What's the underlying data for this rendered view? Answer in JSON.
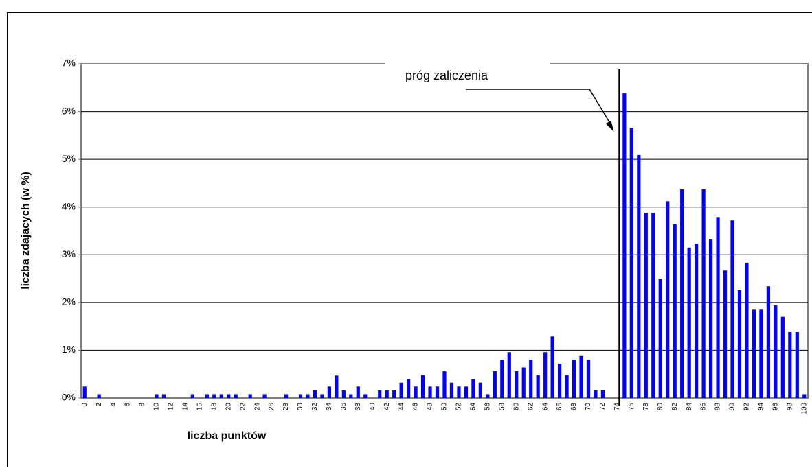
{
  "chart_data": {
    "type": "bar",
    "ylabel": "liczba zdajacych (w %)",
    "xlabel": "liczba punktów",
    "color": "#0000ff",
    "categories": [
      0,
      null,
      2,
      null,
      4,
      null,
      6,
      null,
      8,
      null,
      10,
      null,
      12,
      null,
      14,
      null,
      16,
      null,
      18,
      null,
      20,
      null,
      22,
      null,
      24,
      null,
      26,
      null,
      28,
      null,
      30,
      null,
      32,
      null,
      34,
      null,
      36,
      null,
      38,
      null,
      40,
      null,
      42,
      null,
      44,
      null,
      46,
      null,
      48,
      null,
      50,
      null,
      52,
      null,
      54,
      null,
      56,
      null,
      58,
      null,
      60,
      null,
      62,
      null,
      64,
      null,
      66,
      null,
      68,
      null,
      70,
      null,
      72,
      null,
      74,
      null,
      76,
      null,
      78,
      null,
      80,
      null,
      82,
      null,
      84,
      null,
      86,
      null,
      88,
      null,
      90,
      null,
      92,
      null,
      94,
      null,
      96,
      null,
      98,
      null,
      100
    ],
    "values": [
      0.24,
      0,
      0.08,
      0,
      0,
      0,
      0,
      0,
      0,
      0,
      0.08,
      0.08,
      0,
      0,
      0,
      0.08,
      0,
      0.08,
      0.08,
      0.08,
      0.08,
      0.08,
      0,
      0.08,
      0,
      0.08,
      0,
      0,
      0.08,
      0,
      0.08,
      0.08,
      0.16,
      0.08,
      0.24,
      0.47,
      0.16,
      0.08,
      0.24,
      0.08,
      0,
      0.16,
      0.16,
      0.16,
      0.32,
      0.4,
      0.24,
      0.48,
      0.24,
      0.24,
      0.56,
      0.32,
      0.24,
      0.24,
      0.4,
      0.32,
      0.08,
      0.56,
      0.8,
      0.96,
      0.56,
      0.64,
      0.8,
      0.48,
      0.96,
      1.29,
      0.72,
      0.48,
      0.8,
      0.88,
      0.8,
      0.16,
      0.16,
      0,
      0,
      6.38,
      5.66,
      5.09,
      3.88,
      3.88,
      2.5,
      4.12,
      3.64,
      4.37,
      3.15,
      3.23,
      4.37,
      3.32,
      3.79,
      2.67,
      3.72,
      2.26,
      2.83,
      1.85,
      1.85,
      2.34,
      1.94,
      1.7,
      1.38,
      1.38,
      0.08
    ],
    "ylim": [
      0,
      7
    ],
    "yticks": [
      {
        "value": 0,
        "label": "0%"
      },
      {
        "value": 1,
        "label": "1%"
      },
      {
        "value": 2,
        "label": "2%"
      },
      {
        "value": 3,
        "label": "3%"
      },
      {
        "value": 4,
        "label": "4%"
      },
      {
        "value": 5,
        "label": "5%"
      },
      {
        "value": 6,
        "label": "6%"
      },
      {
        "value": 7,
        "label": "7%"
      }
    ],
    "grid": true,
    "annotation": {
      "text": "próg zaliczenia",
      "x": 74.3
    }
  }
}
